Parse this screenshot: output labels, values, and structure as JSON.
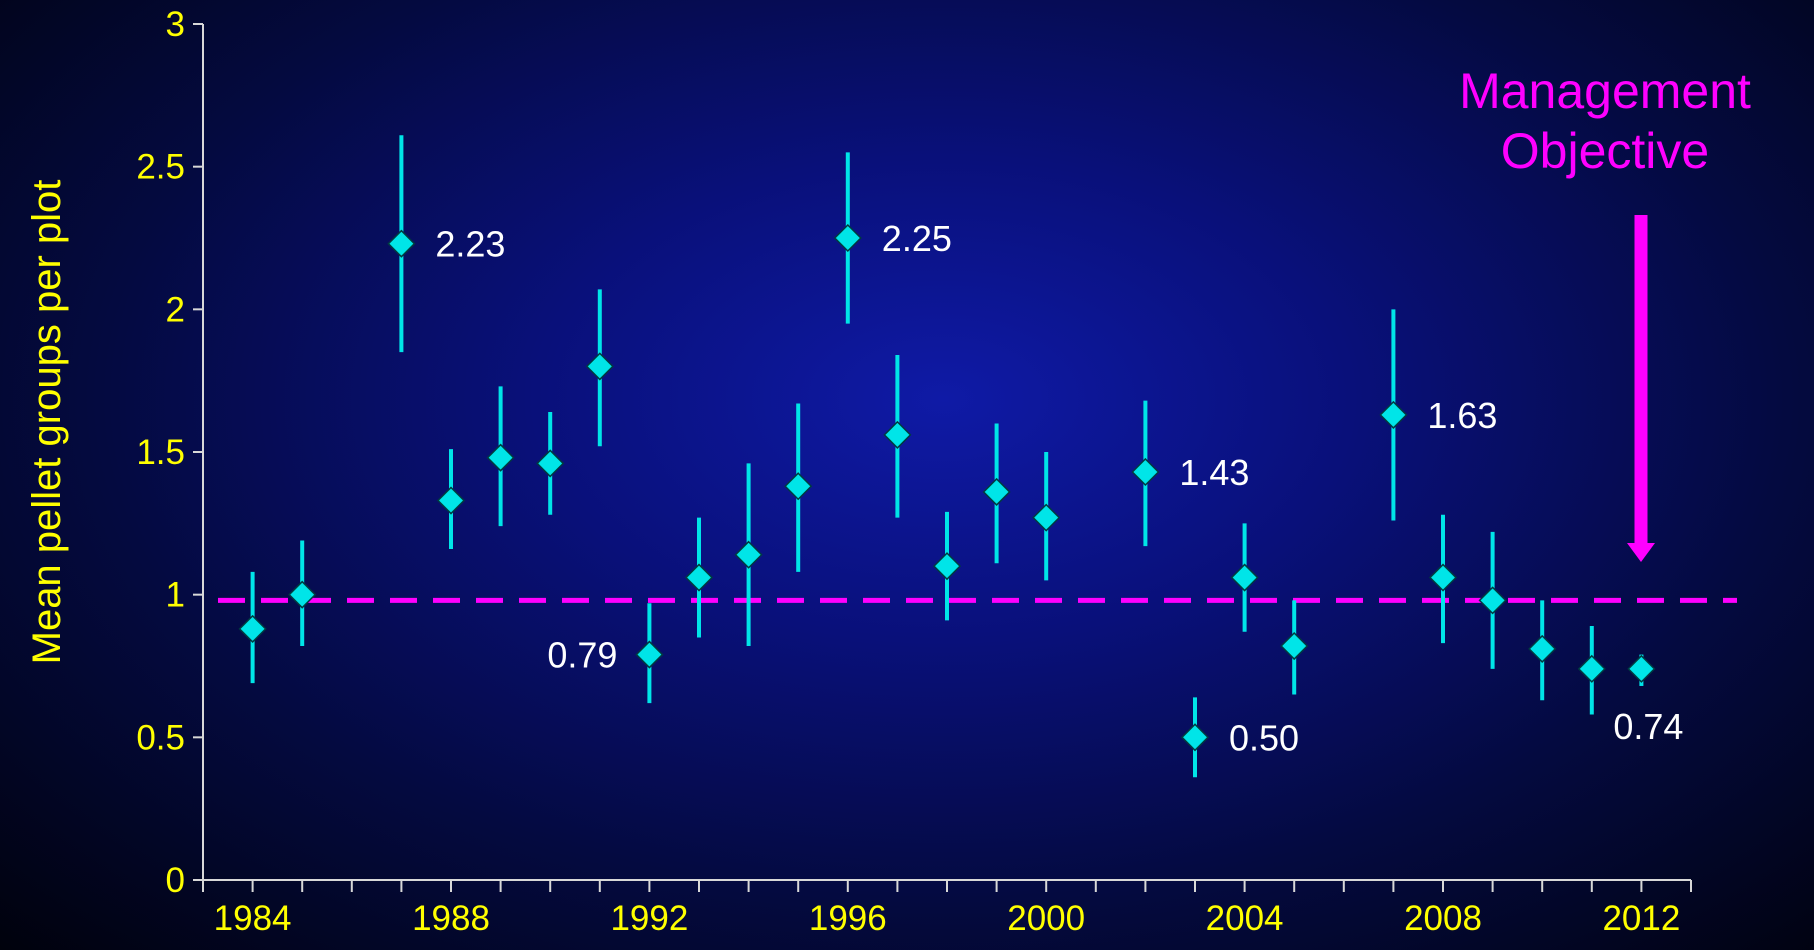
{
  "chart_data": {
    "type": "scatter",
    "ylabel": "Mean pellet groups per plot",
    "xlim": [
      1983,
      2015
    ],
    "ylim": [
      0,
      3
    ],
    "x_ticks": [
      1984,
      1988,
      1992,
      1996,
      2000,
      2004,
      2008,
      2012
    ],
    "y_ticks": [
      0,
      0.5,
      1,
      1.5,
      2,
      2.5,
      3
    ],
    "y_tick_labels": [
      "0",
      "0.5",
      "1",
      "1.5",
      "2",
      "2.5",
      "3"
    ],
    "grid": false,
    "series": [
      {
        "points": [
          {
            "x": 1984,
            "y": 0.88,
            "low": 0.69,
            "high": 1.08
          },
          {
            "x": 1985,
            "y": 1.0,
            "low": 0.82,
            "high": 1.19
          },
          {
            "x": 1987,
            "y": 2.23,
            "low": 1.85,
            "high": 2.61,
            "label": "2.23"
          },
          {
            "x": 1988,
            "y": 1.33,
            "low": 1.16,
            "high": 1.51
          },
          {
            "x": 1989,
            "y": 1.48,
            "low": 1.24,
            "high": 1.73
          },
          {
            "x": 1990,
            "y": 1.46,
            "low": 1.28,
            "high": 1.64
          },
          {
            "x": 1991,
            "y": 1.8,
            "low": 1.52,
            "high": 2.07
          },
          {
            "x": 1992,
            "y": 0.79,
            "low": 0.62,
            "high": 0.97,
            "label": "0.79"
          },
          {
            "x": 1993,
            "y": 1.06,
            "low": 0.85,
            "high": 1.27
          },
          {
            "x": 1994,
            "y": 1.14,
            "low": 0.82,
            "high": 1.46
          },
          {
            "x": 1995,
            "y": 1.38,
            "low": 1.08,
            "high": 1.67
          },
          {
            "x": 1996,
            "y": 2.25,
            "low": 1.95,
            "high": 2.55,
            "label": "2.25"
          },
          {
            "x": 1997,
            "y": 1.56,
            "low": 1.27,
            "high": 1.84
          },
          {
            "x": 1998,
            "y": 1.1,
            "low": 0.91,
            "high": 1.29
          },
          {
            "x": 1999,
            "y": 1.36,
            "low": 1.11,
            "high": 1.6
          },
          {
            "x": 2000,
            "y": 1.27,
            "low": 1.05,
            "high": 1.5
          },
          {
            "x": 2002,
            "y": 1.43,
            "low": 1.17,
            "high": 1.68,
            "label": "1.43"
          },
          {
            "x": 2003,
            "y": 0.5,
            "low": 0.36,
            "high": 0.64,
            "label": "0.50"
          },
          {
            "x": 2004,
            "y": 1.06,
            "low": 0.87,
            "high": 1.25
          },
          {
            "x": 2005,
            "y": 0.82,
            "low": 0.65,
            "high": 0.98
          },
          {
            "x": 2007,
            "y": 1.63,
            "low": 1.26,
            "high": 2.0,
            "label": "1.63"
          },
          {
            "x": 2008,
            "y": 1.06,
            "low": 0.83,
            "high": 1.28
          },
          {
            "x": 2009,
            "y": 0.98,
            "low": 0.74,
            "high": 1.22
          },
          {
            "x": 2010,
            "y": 0.81,
            "low": 0.63,
            "high": 0.98
          },
          {
            "x": 2011,
            "y": 0.74,
            "low": 0.58,
            "high": 0.89
          },
          {
            "x": 2012,
            "y": 0.74,
            "low": 0.68,
            "high": 0.79,
            "label": "0.74"
          }
        ]
      }
    ],
    "reference_line": {
      "y": 0.98
    },
    "annotation": {
      "lines": [
        "Management",
        "Objective"
      ]
    },
    "colors": {
      "marker": "#00e5e8",
      "error_bar": "#00e5e8",
      "objective": "#ff00ff",
      "axis_text": "#ffff00",
      "label_text": "#ffffff",
      "axis_line": "#d8d8d8"
    }
  }
}
